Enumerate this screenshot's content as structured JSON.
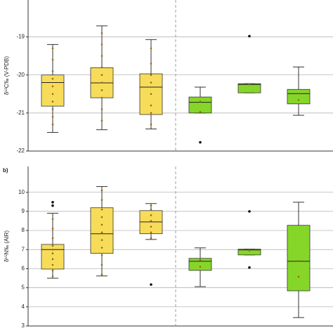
{
  "chart_data": [
    {
      "type": "box",
      "ylabel": "δ¹³C‰ (V-PDB)",
      "ylim": [
        -22,
        -18.03
      ],
      "yticks": [
        -22,
        -21,
        -20,
        -19
      ],
      "grid": true,
      "divider_after": 3,
      "boxes": [
        {
          "color": "#f7dc5a",
          "whisker_low": -21.51,
          "q1": -20.82,
          "median": -20.2,
          "q3": -20.0,
          "whisker_high": -19.2,
          "outliers": [],
          "points": [
            -19.3,
            -19.6,
            -19.9,
            -20.1,
            -20.3,
            -20.5,
            -20.7,
            -20.9,
            -21.1,
            -21.3
          ]
        },
        {
          "color": "#f7dc5a",
          "whisker_low": -21.44,
          "q1": -20.6,
          "median": -20.21,
          "q3": -19.81,
          "whisker_high": -18.71,
          "outliers": [],
          "points": [
            -18.9,
            -19.2,
            -19.5,
            -19.8,
            -20.0,
            -20.2,
            -20.4,
            -20.6,
            -20.9,
            -21.2
          ]
        },
        {
          "color": "#f7dc5a",
          "whisker_low": -21.42,
          "q1": -21.04,
          "median": -20.32,
          "q3": -19.97,
          "whisker_high": -19.07,
          "outliers": [],
          "points": [
            -19.3,
            -19.7,
            -20.0,
            -20.2,
            -20.5,
            -20.8,
            -21.0,
            -21.3
          ]
        },
        {
          "color": "#86d62a",
          "whisker_low": -21.0,
          "q1": -21.0,
          "median": -20.72,
          "q3": -20.58,
          "whisker_high": -20.32,
          "outliers": [
            -21.77
          ],
          "points": [
            -20.7,
            -20.97
          ]
        },
        {
          "color": "#86d62a",
          "whisker_low": -20.47,
          "q1": -20.47,
          "median": -20.25,
          "q3": -20.23,
          "whisker_high": -20.23,
          "outliers": [
            -18.98
          ],
          "points": [
            -20.25
          ]
        },
        {
          "color": "#86d62a",
          "whisker_low": -21.06,
          "q1": -20.76,
          "median": -20.49,
          "q3": -20.38,
          "whisker_high": -19.79,
          "outliers": [],
          "points": [
            -20.49,
            -20.66
          ]
        }
      ]
    },
    {
      "type": "box",
      "panel_label": "b)",
      "ylabel": "δ¹⁵N‰ (AIR)",
      "ylim": [
        3,
        11.35
      ],
      "yticks": [
        3,
        4,
        5,
        6,
        7,
        8,
        9,
        10
      ],
      "grid": true,
      "divider_after": 3,
      "boxes": [
        {
          "color": "#f7dc5a",
          "whisker_low": 5.5,
          "q1": 5.98,
          "median": 7.0,
          "q3": 7.27,
          "whisker_high": 8.9,
          "outliers": [
            9.48,
            9.3
          ],
          "points": [
            5.6,
            5.9,
            6.2,
            6.5,
            6.8,
            7.0,
            7.2,
            7.6,
            8.1,
            8.6
          ]
        },
        {
          "color": "#f7dc5a",
          "whisker_low": 5.62,
          "q1": 6.8,
          "median": 7.83,
          "q3": 9.19,
          "whisker_high": 10.3,
          "outliers": [],
          "points": [
            5.7,
            6.2,
            6.7,
            7.1,
            7.5,
            7.9,
            8.3,
            8.7,
            9.1,
            9.6,
            10.1
          ]
        },
        {
          "color": "#f7dc5a",
          "whisker_low": 7.53,
          "q1": 7.83,
          "median": 8.45,
          "q3": 9.04,
          "whisker_high": 9.41,
          "outliers": [
            5.17
          ],
          "points": [
            7.6,
            7.9,
            8.2,
            8.5,
            8.8,
            9.1,
            9.3
          ]
        },
        {
          "color": "#86d62a",
          "whisker_low": 5.06,
          "q1": 5.91,
          "median": 6.39,
          "q3": 6.54,
          "whisker_high": 7.09,
          "outliers": [],
          "points": [
            6.1,
            6.45
          ]
        },
        {
          "color": "#86d62a",
          "whisker_low": 6.72,
          "q1": 6.72,
          "median": 6.98,
          "q3": 7.02,
          "whisker_high": 7.02,
          "outliers": [
            9.0,
            6.06
          ],
          "points": [
            6.95
          ]
        },
        {
          "color": "#86d62a",
          "whisker_low": 3.44,
          "q1": 4.84,
          "median": 6.39,
          "q3": 8.27,
          "whisker_high": 9.48,
          "outliers": [],
          "points": [
            5.58,
            6.4
          ]
        }
      ]
    }
  ]
}
